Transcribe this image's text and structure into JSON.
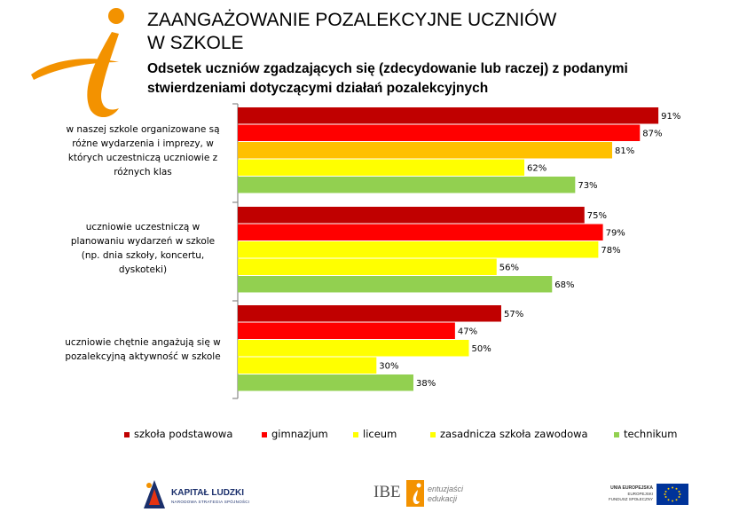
{
  "header": {
    "title_line1": "ZAANGAŻOWANIE POZALEKCYJNE UCZNIÓW",
    "title_line2": "W SZKOLE",
    "subtitle_line1": "Odsetek uczniów zgadzających się (zdecydowanie lub raczej) z podanymi",
    "subtitle_line2": "stwierdzeniami dotyczącymi działań pozalekcyjnych"
  },
  "chart_data": {
    "type": "bar",
    "orientation": "horizontal",
    "title": "Odsetek uczniów zgadzających się (zdecydowanie lub raczej) z podanymi stwierdzeniami dotyczącymi działań pozalekcyjnych",
    "xlim": [
      0,
      100
    ],
    "value_suffix": "%",
    "grid": false,
    "legend_position": "bottom",
    "categories": [
      "w naszej szkole organizowane są różne wydarzenia i imprezy, w których uczestniczą uczniowie z różnych klas",
      "uczniowie uczestniczą w planowaniu wydarzeń w szkole (np. dnia szkoły, koncertu, dyskoteki)",
      "uczniowie chętnie angażują się w pozalekcyjną aktywność w szkole"
    ],
    "series": [
      {
        "name": "szkoła podstawowa",
        "color": "#C00000",
        "values": [
          91,
          75,
          57
        ]
      },
      {
        "name": "gimnazjum",
        "color": "#FF0000",
        "values": [
          87,
          79,
          47
        ]
      },
      {
        "name": "liceum",
        "color": "#FFFF00",
        "values": [
          81,
          78,
          50
        ]
      },
      {
        "name": "zasadnicza szkoła zawodowa",
        "color": "#FFFF00",
        "values": [
          62,
          56,
          30
        ]
      },
      {
        "name": "technikum",
        "color": "#92D050",
        "values": [
          73,
          68,
          38
        ]
      }
    ],
    "bar_colors_by_group": [
      [
        "#C00000",
        "#FF0000",
        "#FFC000",
        "#FFFF00",
        "#92D050"
      ],
      [
        "#C00000",
        "#FF0000",
        "#FFFF00",
        "#FFFF00",
        "#92D050"
      ],
      [
        "#C00000",
        "#FF0000",
        "#FFFF00",
        "#FFFF00",
        "#92D050"
      ]
    ],
    "labels": {
      "cat0_lines": [
        "w naszej szkole organizowane są",
        "różne wydarzenia i imprezy, w",
        "których uczestniczą uczniowie z",
        "różnych klas"
      ],
      "cat1_lines": [
        "uczniowie uczestniczą w",
        "planowaniu wydarzeń w szkole",
        "(np. dnia szkoły, koncertu,",
        "dyskoteki)"
      ],
      "cat2_lines": [
        "uczniowie chętnie angażują się w",
        "pozalekcyjną aktywność w szkole"
      ]
    }
  },
  "logos": {
    "kapital_ludzki": "KAPITAŁ LUDZKI",
    "kapital_ludzki_sub": "NARODOWA STRATEGIA SPÓJNOŚCI",
    "ibe": "IBE",
    "ibe_tag1": "entuzjaści",
    "ibe_tag2": "edukacji",
    "eu1": "UNIA EUROPEJSKA",
    "eu2": "EUROPEJSKI",
    "eu3": "FUNDUSZ SPOŁECZNY"
  },
  "colors": {
    "brand_orange": "#F39200",
    "axis": "#888888"
  }
}
